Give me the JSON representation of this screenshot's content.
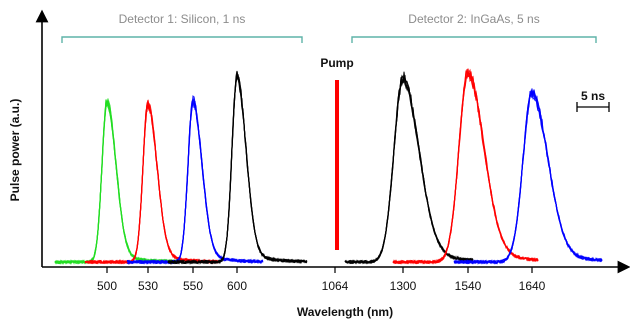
{
  "chart_data": {
    "type": "line",
    "xlabel": "Wavelength (nm)",
    "ylabel": "Pulse power (a.u.)",
    "x_tick_labels": [
      "500",
      "530",
      "550",
      "600",
      "1064",
      "1300",
      "1540",
      "1640"
    ],
    "detectors": [
      {
        "label": "Detector 1: Silicon, 1 ns",
        "bracket_color": "#5fb3a9"
      },
      {
        "label": "Detector 2: InGaAs, 5 ns",
        "bracket_color": "#5fb3a9"
      }
    ],
    "pump": {
      "label": "Pump",
      "wavelength_nm": 1064,
      "color": "#ff0000"
    },
    "time_scale_label": "5 ns",
    "grid": false,
    "legend": "none",
    "series": [
      {
        "wavelength_nm": 500,
        "color": "#22dd22",
        "peak_rel": 0.63,
        "detector": 1
      },
      {
        "wavelength_nm": 530,
        "color": "#ff0000",
        "peak_rel": 0.62,
        "detector": 1
      },
      {
        "wavelength_nm": 550,
        "color": "#0000ff",
        "peak_rel": 0.63,
        "detector": 1
      },
      {
        "wavelength_nm": 600,
        "color": "#000000",
        "peak_rel": 0.73,
        "detector": 1
      },
      {
        "wavelength_nm": 1300,
        "color": "#000000",
        "peak_rel": 0.72,
        "detector": 2
      },
      {
        "wavelength_nm": 1540,
        "color": "#ff0000",
        "peak_rel": 0.74,
        "detector": 2
      },
      {
        "wavelength_nm": 1640,
        "color": "#0000ff",
        "peak_rel": 0.66,
        "detector": 2
      }
    ]
  }
}
